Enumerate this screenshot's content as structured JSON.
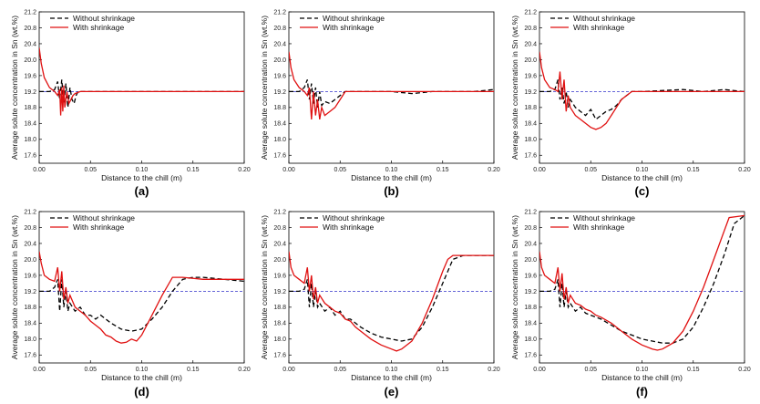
{
  "figure": {
    "xlabel": "Distance to the chill (m)",
    "ylabel": "Average solute concentration in Sn (wt.%)",
    "legend": [
      "Without shrinkage",
      "With shrinkage"
    ]
  },
  "colors": {
    "without": "#000000",
    "with": "#e01010",
    "reference": "#3333cc"
  },
  "chart_data": [
    {
      "type": "line",
      "panel": "(a)",
      "title": "",
      "xlabel": "Distance to the chill (m)",
      "ylabel": "Average solute concentration in Sn (wt.%)",
      "xlim": [
        0,
        0.2
      ],
      "ylim": [
        17.4,
        21.2
      ],
      "xticks": [
        "0.00",
        "0.05",
        "0.10",
        "0.15",
        "0.20"
      ],
      "yticks": [
        "17.6",
        "18.0",
        "18.4",
        "18.8",
        "19.2",
        "19.6",
        "20.0",
        "20.4",
        "20.8",
        "21.2"
      ],
      "legend": "top-left",
      "reference_line": 19.2,
      "series": [
        {
          "name": "Without shrinkage",
          "x": [
            0,
            0.005,
            0.01,
            0.015,
            0.018,
            0.02,
            0.022,
            0.024,
            0.026,
            0.028,
            0.03,
            0.032,
            0.034,
            0.036,
            0.038,
            0.042,
            0.05,
            0.1,
            0.2
          ],
          "y": [
            19.2,
            19.2,
            19.2,
            19.25,
            19.45,
            19.0,
            19.5,
            18.9,
            19.4,
            18.8,
            19.3,
            19.0,
            18.9,
            19.1,
            19.2,
            19.2,
            19.2,
            19.2,
            19.2
          ]
        },
        {
          "name": "With shrinkage",
          "x": [
            0,
            0.002,
            0.005,
            0.01,
            0.015,
            0.018,
            0.02,
            0.021,
            0.022,
            0.023,
            0.024,
            0.025,
            0.027,
            0.029,
            0.031,
            0.033,
            0.035,
            0.04,
            0.045,
            0.1,
            0.2
          ],
          "y": [
            20.3,
            19.9,
            19.55,
            19.3,
            19.2,
            19.1,
            19.25,
            18.6,
            19.3,
            18.7,
            19.35,
            18.8,
            19.2,
            18.9,
            19.0,
            19.1,
            19.15,
            19.2,
            19.2,
            19.2,
            19.2
          ]
        }
      ]
    },
    {
      "type": "line",
      "panel": "(b)",
      "title": "",
      "xlabel": "Distance to the chill (m)",
      "ylabel": "Average solute concentration in Sn (wt.%)",
      "xlim": [
        0,
        0.2
      ],
      "ylim": [
        17.4,
        21.2
      ],
      "xticks": [
        "0.00",
        "0.05",
        "0.10",
        "0.15",
        "0.20"
      ],
      "yticks": [
        "17.6",
        "18.0",
        "18.4",
        "18.8",
        "19.2",
        "19.6",
        "20.0",
        "20.4",
        "20.8",
        "21.2"
      ],
      "legend": "top-left",
      "reference_line": 19.2,
      "series": [
        {
          "name": "Without shrinkage",
          "x": [
            0,
            0.01,
            0.015,
            0.018,
            0.02,
            0.022,
            0.024,
            0.026,
            0.028,
            0.03,
            0.032,
            0.035,
            0.04,
            0.045,
            0.05,
            0.055,
            0.06,
            0.08,
            0.1,
            0.12,
            0.14,
            0.16,
            0.18,
            0.2
          ],
          "y": [
            19.2,
            19.2,
            19.3,
            19.5,
            19.0,
            19.4,
            18.9,
            19.3,
            18.8,
            19.2,
            18.85,
            18.95,
            18.9,
            19.0,
            19.1,
            19.2,
            19.2,
            19.2,
            19.2,
            19.15,
            19.2,
            19.2,
            19.2,
            19.25
          ]
        },
        {
          "name": "With shrinkage",
          "x": [
            0,
            0.002,
            0.005,
            0.01,
            0.015,
            0.018,
            0.02,
            0.022,
            0.024,
            0.026,
            0.028,
            0.03,
            0.032,
            0.035,
            0.04,
            0.045,
            0.05,
            0.055,
            0.06,
            0.1,
            0.2
          ],
          "y": [
            20.2,
            19.8,
            19.5,
            19.3,
            19.2,
            19.1,
            19.3,
            18.5,
            19.2,
            18.6,
            19.0,
            18.5,
            18.8,
            18.6,
            18.7,
            18.8,
            19.0,
            19.2,
            19.2,
            19.2,
            19.2
          ]
        }
      ]
    },
    {
      "type": "line",
      "panel": "(c)",
      "title": "",
      "xlabel": "Distance to the chill (m)",
      "ylabel": "Average solute concentration in Sn (wt.%)",
      "xlim": [
        0,
        0.2
      ],
      "ylim": [
        17.4,
        21.2
      ],
      "xticks": [
        "0.00",
        "0.05",
        "0.10",
        "0.15",
        "0.20"
      ],
      "yticks": [
        "17.6",
        "18.0",
        "18.4",
        "18.8",
        "19.2",
        "19.6",
        "20.0",
        "20.4",
        "20.8",
        "21.2"
      ],
      "legend": "top-left",
      "reference_line": 19.2,
      "series": [
        {
          "name": "Without shrinkage",
          "x": [
            0,
            0.01,
            0.015,
            0.018,
            0.02,
            0.022,
            0.024,
            0.026,
            0.028,
            0.03,
            0.035,
            0.04,
            0.045,
            0.05,
            0.055,
            0.06,
            0.065,
            0.07,
            0.075,
            0.08,
            0.09,
            0.1,
            0.14,
            0.16,
            0.18,
            0.2
          ],
          "y": [
            19.2,
            19.2,
            19.25,
            19.5,
            19.0,
            19.3,
            18.9,
            19.2,
            18.8,
            19.0,
            18.8,
            18.7,
            18.6,
            18.75,
            18.5,
            18.6,
            18.7,
            18.75,
            18.85,
            19.0,
            19.2,
            19.2,
            19.25,
            19.2,
            19.25,
            19.2
          ]
        },
        {
          "name": "With shrinkage",
          "x": [
            0,
            0.002,
            0.005,
            0.01,
            0.015,
            0.018,
            0.02,
            0.022,
            0.024,
            0.026,
            0.028,
            0.03,
            0.035,
            0.04,
            0.045,
            0.05,
            0.055,
            0.06,
            0.065,
            0.07,
            0.075,
            0.08,
            0.085,
            0.09,
            0.1,
            0.2
          ],
          "y": [
            20.2,
            19.8,
            19.5,
            19.3,
            19.25,
            19.2,
            19.7,
            19.0,
            19.5,
            18.7,
            19.1,
            18.8,
            18.6,
            18.5,
            18.4,
            18.3,
            18.25,
            18.3,
            18.4,
            18.6,
            18.8,
            19.0,
            19.1,
            19.2,
            19.2,
            19.2
          ]
        }
      ]
    },
    {
      "type": "line",
      "panel": "(d)",
      "title": "",
      "xlabel": "Distance to the chill (m)",
      "ylabel": "Average solute concentration in Sn (wt.%)",
      "xlim": [
        0,
        0.2
      ],
      "ylim": [
        17.4,
        21.2
      ],
      "xticks": [
        "0.00",
        "0.05",
        "0.10",
        "0.15",
        "0.20"
      ],
      "yticks": [
        "17.6",
        "18.0",
        "18.4",
        "18.8",
        "19.2",
        "19.6",
        "20.0",
        "20.4",
        "20.8",
        "21.2"
      ],
      "legend": "top-left",
      "reference_line": 19.2,
      "series": [
        {
          "name": "Without shrinkage",
          "x": [
            0,
            0.01,
            0.015,
            0.018,
            0.02,
            0.022,
            0.024,
            0.026,
            0.028,
            0.03,
            0.035,
            0.04,
            0.045,
            0.05,
            0.055,
            0.06,
            0.065,
            0.07,
            0.08,
            0.09,
            0.1,
            0.11,
            0.12,
            0.13,
            0.14,
            0.15,
            0.16,
            0.2
          ],
          "y": [
            19.2,
            19.2,
            19.3,
            19.5,
            18.7,
            19.5,
            18.8,
            19.2,
            18.7,
            18.9,
            18.7,
            18.8,
            18.6,
            18.6,
            18.5,
            18.6,
            18.5,
            18.4,
            18.25,
            18.2,
            18.25,
            18.5,
            18.8,
            19.2,
            19.5,
            19.55,
            19.55,
            19.45
          ]
        },
        {
          "name": "With shrinkage",
          "x": [
            0,
            0.002,
            0.005,
            0.01,
            0.015,
            0.018,
            0.02,
            0.022,
            0.024,
            0.026,
            0.028,
            0.03,
            0.035,
            0.04,
            0.045,
            0.05,
            0.055,
            0.06,
            0.065,
            0.07,
            0.075,
            0.08,
            0.085,
            0.09,
            0.095,
            0.1,
            0.11,
            0.12,
            0.13,
            0.14,
            0.16,
            0.2
          ],
          "y": [
            20.2,
            19.9,
            19.6,
            19.5,
            19.45,
            19.8,
            19.2,
            19.7,
            19.0,
            19.3,
            18.9,
            19.1,
            18.8,
            18.7,
            18.6,
            18.45,
            18.35,
            18.25,
            18.1,
            18.05,
            17.95,
            17.9,
            17.92,
            18.0,
            17.95,
            18.1,
            18.6,
            19.1,
            19.55,
            19.55,
            19.5,
            19.5
          ]
        }
      ]
    },
    {
      "type": "line",
      "panel": "(e)",
      "title": "",
      "xlabel": "Distance to the chill (m)",
      "ylabel": "Average solute concentration in Sn (wt.%)",
      "xlim": [
        0,
        0.2
      ],
      "ylim": [
        17.4,
        21.2
      ],
      "xticks": [
        "0.00",
        "0.05",
        "0.10",
        "0.15",
        "0.20"
      ],
      "yticks": [
        "17.6",
        "18.0",
        "18.4",
        "18.8",
        "19.2",
        "19.6",
        "20.0",
        "20.4",
        "20.8",
        "21.2"
      ],
      "legend": "top-left",
      "reference_line": 19.2,
      "series": [
        {
          "name": "Without shrinkage",
          "x": [
            0,
            0.01,
            0.015,
            0.018,
            0.02,
            0.022,
            0.024,
            0.026,
            0.028,
            0.03,
            0.035,
            0.04,
            0.045,
            0.05,
            0.055,
            0.06,
            0.07,
            0.08,
            0.09,
            0.1,
            0.11,
            0.12,
            0.13,
            0.14,
            0.15,
            0.16,
            0.17,
            0.2
          ],
          "y": [
            19.2,
            19.2,
            19.25,
            19.5,
            18.8,
            19.4,
            18.8,
            19.2,
            18.8,
            18.9,
            18.7,
            18.8,
            18.6,
            18.7,
            18.5,
            18.5,
            18.3,
            18.15,
            18.05,
            18.0,
            17.95,
            18.0,
            18.3,
            18.8,
            19.4,
            20.0,
            20.1,
            20.1
          ]
        },
        {
          "name": "With shrinkage",
          "x": [
            0,
            0.002,
            0.005,
            0.01,
            0.015,
            0.018,
            0.02,
            0.022,
            0.024,
            0.026,
            0.028,
            0.03,
            0.035,
            0.04,
            0.045,
            0.05,
            0.055,
            0.06,
            0.065,
            0.07,
            0.08,
            0.09,
            0.1,
            0.105,
            0.11,
            0.12,
            0.13,
            0.14,
            0.15,
            0.155,
            0.16,
            0.17,
            0.2
          ],
          "y": [
            20.2,
            19.8,
            19.6,
            19.5,
            19.4,
            19.8,
            19.2,
            19.6,
            19.0,
            19.3,
            18.9,
            19.1,
            18.9,
            18.8,
            18.7,
            18.65,
            18.5,
            18.45,
            18.3,
            18.2,
            18.0,
            17.85,
            17.75,
            17.7,
            17.75,
            17.95,
            18.4,
            19.0,
            19.7,
            20.0,
            20.1,
            20.1,
            20.1
          ]
        }
      ]
    },
    {
      "type": "line",
      "panel": "(f)",
      "title": "",
      "xlabel": "Distance to the chill (m)",
      "ylabel": "Average solute concentration in Sn (wt.%)",
      "xlim": [
        0,
        0.2
      ],
      "ylim": [
        17.4,
        21.2
      ],
      "xticks": [
        "0.00",
        "0.05",
        "0.10",
        "0.15",
        "0.20"
      ],
      "yticks": [
        "17.6",
        "18.0",
        "18.4",
        "18.8",
        "19.2",
        "19.6",
        "20.0",
        "20.4",
        "20.8",
        "21.2"
      ],
      "legend": "top-left",
      "reference_line": 19.2,
      "series": [
        {
          "name": "Without shrinkage",
          "x": [
            0,
            0.01,
            0.015,
            0.018,
            0.02,
            0.022,
            0.024,
            0.026,
            0.028,
            0.03,
            0.035,
            0.04,
            0.045,
            0.05,
            0.06,
            0.07,
            0.08,
            0.09,
            0.1,
            0.11,
            0.12,
            0.13,
            0.14,
            0.15,
            0.16,
            0.17,
            0.18,
            0.19,
            0.2
          ],
          "y": [
            19.2,
            19.2,
            19.25,
            19.5,
            18.8,
            19.4,
            18.8,
            19.2,
            18.8,
            18.9,
            18.7,
            18.8,
            18.65,
            18.6,
            18.5,
            18.35,
            18.2,
            18.1,
            18.0,
            17.95,
            17.9,
            17.9,
            18.0,
            18.3,
            18.8,
            19.4,
            20.1,
            20.9,
            21.1
          ]
        },
        {
          "name": "With shrinkage",
          "x": [
            0,
            0.002,
            0.005,
            0.01,
            0.015,
            0.018,
            0.02,
            0.022,
            0.024,
            0.026,
            0.028,
            0.03,
            0.035,
            0.04,
            0.045,
            0.05,
            0.055,
            0.06,
            0.07,
            0.08,
            0.09,
            0.1,
            0.11,
            0.115,
            0.12,
            0.13,
            0.14,
            0.15,
            0.16,
            0.17,
            0.18,
            0.185,
            0.2
          ],
          "y": [
            20.2,
            19.8,
            19.6,
            19.5,
            19.4,
            19.8,
            19.2,
            19.65,
            19.0,
            19.3,
            18.9,
            19.1,
            18.9,
            18.85,
            18.75,
            18.7,
            18.6,
            18.55,
            18.4,
            18.2,
            18.0,
            17.85,
            17.75,
            17.72,
            17.75,
            17.9,
            18.2,
            18.7,
            19.3,
            20.0,
            20.7,
            21.05,
            21.1
          ]
        }
      ]
    }
  ]
}
